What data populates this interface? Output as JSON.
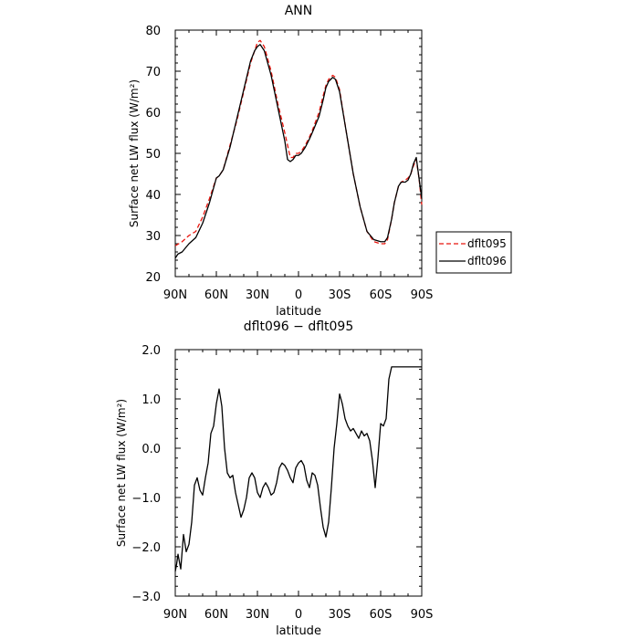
{
  "chart_data": [
    {
      "type": "line",
      "title": "ANN",
      "xlabel": "latitude",
      "ylabel": "Surface net LW flux (W/m²)",
      "xlim": [
        90,
        -90
      ],
      "ylim": [
        20,
        80
      ],
      "xticks": [
        90,
        60,
        30,
        0,
        -30,
        -60,
        -90
      ],
      "xtick_labels": [
        "90N",
        "60N",
        "30N",
        "0",
        "30S",
        "60S",
        "90S"
      ],
      "yticks": [
        20,
        30,
        40,
        50,
        60,
        70,
        80
      ],
      "ytick_labels": [
        "20",
        "30",
        "40",
        "50",
        "60",
        "70",
        "80"
      ],
      "legend_position": "right",
      "series": [
        {
          "name": "dflt095",
          "color": "#e8140c",
          "dash": "dashed",
          "x": [
            90,
            85,
            80,
            75,
            70,
            65,
            60,
            58,
            55,
            50,
            45,
            40,
            35,
            32,
            30,
            28,
            25,
            20,
            15,
            10,
            6,
            4,
            2,
            0,
            -2,
            -5,
            -8,
            -10,
            -15,
            -18,
            -20,
            -22,
            -25,
            -27,
            -30,
            -35,
            -40,
            -45,
            -50,
            -55,
            -60,
            -63,
            -65,
            -68,
            -70,
            -73,
            -75,
            -78,
            -80,
            -82,
            -84,
            -86,
            -88,
            -90
          ],
          "y": [
            27.5,
            28.5,
            30,
            31,
            34.5,
            39,
            44,
            44.5,
            46,
            52,
            58,
            65,
            72,
            75,
            77,
            77.5,
            76,
            70,
            62,
            55,
            49,
            49,
            50,
            50,
            50.5,
            52,
            54,
            55.5,
            60,
            64,
            66.5,
            68,
            69,
            68.5,
            65.5,
            55,
            45,
            37,
            31,
            28.5,
            28,
            28,
            29,
            34,
            38,
            42,
            43,
            43.5,
            44,
            45,
            47,
            48.5,
            44,
            37.5
          ]
        },
        {
          "name": "dflt096",
          "color": "#000000",
          "dash": "solid",
          "x": [
            90,
            88,
            85,
            80,
            75,
            70,
            65,
            60,
            58,
            55,
            50,
            45,
            40,
            35,
            32,
            30,
            28,
            25,
            20,
            15,
            10,
            8,
            6,
            4,
            2,
            0,
            -2,
            -5,
            -8,
            -10,
            -15,
            -18,
            -20,
            -22,
            -25,
            -27,
            -30,
            -35,
            -40,
            -45,
            -50,
            -55,
            -60,
            -63,
            -65,
            -68,
            -70,
            -73,
            -75,
            -78,
            -80,
            -82,
            -84,
            -86,
            -88,
            -90
          ],
          "y": [
            24.5,
            25.5,
            26,
            28,
            29.5,
            33,
            38,
            44,
            44.5,
            46,
            51.5,
            58.5,
            65.5,
            72.5,
            75,
            76,
            76.5,
            75,
            69,
            61,
            53,
            48.5,
            48,
            48.5,
            49.5,
            49.5,
            50,
            51.5,
            53.5,
            55,
            59,
            63,
            66,
            67.5,
            68.5,
            68,
            65,
            55,
            45,
            37,
            31,
            29,
            28.5,
            28.5,
            29.5,
            34,
            38,
            42,
            43,
            43,
            43.5,
            45,
            47.5,
            49,
            44,
            39
          ]
        }
      ]
    },
    {
      "type": "line",
      "title": "dflt096 − dflt095",
      "xlabel": "latitude",
      "ylabel": "Surface net LW flux (W/m²)",
      "xlim": [
        90,
        -90
      ],
      "ylim": [
        -3,
        2
      ],
      "xticks": [
        90,
        60,
        30,
        0,
        -30,
        -60,
        -90
      ],
      "xtick_labels": [
        "90N",
        "60N",
        "30N",
        "0",
        "30S",
        "60S",
        "90S"
      ],
      "yticks": [
        -3,
        -2,
        -1,
        0,
        1,
        2
      ],
      "ytick_labels": [
        "−3.0",
        "−2.0",
        "−1.0",
        "0.0",
        "1.0",
        "2.0"
      ],
      "series": [
        {
          "color": "#000000",
          "dash": "solid",
          "x": [
            90,
            89,
            88,
            86,
            84,
            82,
            80,
            78,
            76,
            74,
            72,
            70,
            68,
            66,
            64,
            62,
            60,
            58,
            56,
            54,
            52,
            50,
            48,
            46,
            44,
            42,
            40,
            38,
            36,
            34,
            32,
            30,
            28,
            26,
            24,
            22,
            20,
            18,
            16,
            14,
            12,
            10,
            8,
            6,
            4,
            2,
            0,
            -2,
            -4,
            -6,
            -8,
            -10,
            -12,
            -14,
            -16,
            -18,
            -20,
            -22,
            -24,
            -26,
            -28,
            -30,
            -32,
            -34,
            -36,
            -38,
            -40,
            -42,
            -44,
            -46,
            -48,
            -50,
            -52,
            -54,
            -56,
            -58,
            -60,
            -62,
            -64,
            -66,
            -68,
            -70,
            -72,
            -74,
            -76,
            -78,
            -80,
            -82,
            -84,
            -86,
            -88,
            -89,
            -90
          ],
          "y": [
            -2.5,
            -2.35,
            -2.15,
            -2.45,
            -1.75,
            -2.1,
            -1.95,
            -1.5,
            -0.75,
            -0.6,
            -0.85,
            -0.95,
            -0.6,
            -0.3,
            0.3,
            0.45,
            0.9,
            1.2,
            0.85,
            0.0,
            -0.5,
            -0.6,
            -0.55,
            -0.9,
            -1.15,
            -1.4,
            -1.25,
            -1.0,
            -0.6,
            -0.5,
            -0.6,
            -0.9,
            -1.0,
            -0.8,
            -0.7,
            -0.8,
            -0.95,
            -0.9,
            -0.7,
            -0.4,
            -0.3,
            -0.35,
            -0.45,
            -0.6,
            -0.7,
            -0.4,
            -0.3,
            -0.25,
            -0.35,
            -0.65,
            -0.8,
            -0.5,
            -0.55,
            -0.75,
            -1.2,
            -1.6,
            -1.8,
            -1.5,
            -0.8,
            0.0,
            0.5,
            1.1,
            0.9,
            0.6,
            0.45,
            0.35,
            0.4,
            0.3,
            0.2,
            0.35,
            0.25,
            0.3,
            0.15,
            -0.25,
            -0.8,
            -0.2,
            0.5,
            0.45,
            0.6,
            1.4,
            1.65,
            1.65,
            1.65,
            1.65,
            1.65,
            1.65,
            1.65,
            1.65,
            1.65,
            1.65,
            1.65,
            1.65,
            1.65
          ]
        }
      ]
    }
  ]
}
